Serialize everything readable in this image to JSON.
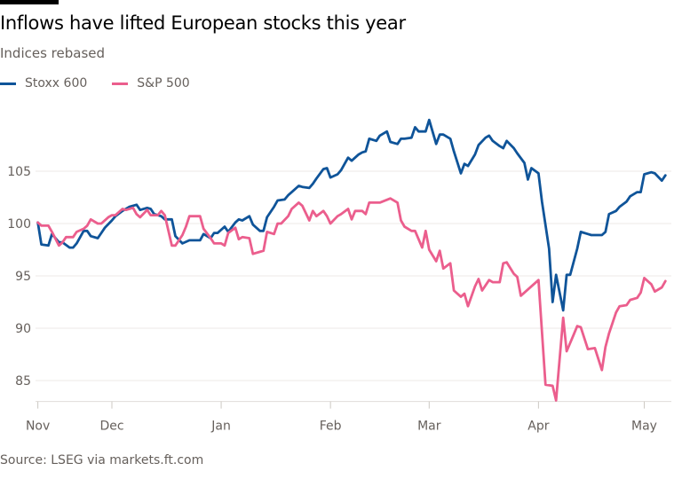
{
  "title": "Inflows have lifted European stocks this year",
  "subtitle": "Indices rebased",
  "source": "Source: LSEG via markets.ft.com",
  "chart_data": {
    "type": "line",
    "title": "Inflows have lifted European stocks this year",
    "subtitle": "Indices rebased",
    "xlabel": "",
    "ylabel": "",
    "ylim": [
      83,
      110
    ],
    "xlim": [
      "2024-11-10",
      "2025-05-08"
    ],
    "grid": true,
    "legend": "top-left",
    "y_ticks": [
      85,
      90,
      95,
      100,
      105
    ],
    "x_ticks": [
      {
        "label": "Nov",
        "date": "2024-11-10"
      },
      {
        "label": "Dec",
        "date": "2024-12-01"
      },
      {
        "label": "Jan",
        "date": "2025-01-01"
      },
      {
        "label": "Feb",
        "date": "2025-02-01"
      },
      {
        "label": "Mar",
        "date": "2025-03-01"
      },
      {
        "label": "Apr",
        "date": "2025-04-01"
      },
      {
        "label": "May",
        "date": "2025-05-01"
      }
    ],
    "series": [
      {
        "name": "Stoxx 600",
        "color": "#0f5499",
        "points": [
          [
            "2024-11-10",
            100.1
          ],
          [
            "2024-11-11",
            98.0
          ],
          [
            "2024-11-13",
            97.9
          ],
          [
            "2024-11-14",
            99.0
          ],
          [
            "2024-11-16",
            98.2
          ],
          [
            "2024-11-17",
            98.2
          ],
          [
            "2024-11-19",
            97.7
          ],
          [
            "2024-11-20",
            97.7
          ],
          [
            "2024-11-21",
            98.1
          ],
          [
            "2024-11-23",
            99.3
          ],
          [
            "2024-11-24",
            99.3
          ],
          [
            "2024-11-25",
            98.8
          ],
          [
            "2024-11-27",
            98.6
          ],
          [
            "2024-11-28",
            99.1
          ],
          [
            "2024-11-29",
            99.6
          ],
          [
            "2024-12-01",
            100.3
          ],
          [
            "2024-12-02",
            100.7
          ],
          [
            "2024-12-04",
            101.2
          ],
          [
            "2024-12-06",
            101.6
          ],
          [
            "2024-12-08",
            101.8
          ],
          [
            "2024-12-09",
            101.3
          ],
          [
            "2024-12-11",
            101.5
          ],
          [
            "2024-12-12",
            101.4
          ],
          [
            "2024-12-13",
            100.9
          ],
          [
            "2024-12-15",
            100.7
          ],
          [
            "2024-12-16",
            100.4
          ],
          [
            "2024-12-18",
            100.4
          ],
          [
            "2024-12-19",
            98.8
          ],
          [
            "2024-12-21",
            98.1
          ],
          [
            "2024-12-23",
            98.4
          ],
          [
            "2024-12-26",
            98.4
          ],
          [
            "2024-12-27",
            99.0
          ],
          [
            "2024-12-29",
            98.6
          ],
          [
            "2024-12-30",
            99.1
          ],
          [
            "2024-12-31",
            99.1
          ],
          [
            "2025-01-02",
            99.7
          ],
          [
            "2025-01-03",
            99.2
          ],
          [
            "2025-01-05",
            100.1
          ],
          [
            "2025-01-06",
            100.4
          ],
          [
            "2025-01-07",
            100.3
          ],
          [
            "2025-01-09",
            100.7
          ],
          [
            "2025-01-10",
            99.9
          ],
          [
            "2025-01-12",
            99.3
          ],
          [
            "2025-01-13",
            99.3
          ],
          [
            "2025-01-14",
            100.6
          ],
          [
            "2025-01-16",
            101.6
          ],
          [
            "2025-01-17",
            102.2
          ],
          [
            "2025-01-19",
            102.3
          ],
          [
            "2025-01-20",
            102.7
          ],
          [
            "2025-01-21",
            103.0
          ],
          [
            "2025-01-23",
            103.6
          ],
          [
            "2025-01-24",
            103.5
          ],
          [
            "2025-01-26",
            103.4
          ],
          [
            "2025-01-27",
            103.8
          ],
          [
            "2025-01-28",
            104.3
          ],
          [
            "2025-01-30",
            105.2
          ],
          [
            "2025-01-31",
            105.3
          ],
          [
            "2025-02-01",
            104.4
          ],
          [
            "2025-02-03",
            104.7
          ],
          [
            "2025-02-04",
            105.1
          ],
          [
            "2025-02-06",
            106.3
          ],
          [
            "2025-02-07",
            106.0
          ],
          [
            "2025-02-09",
            106.6
          ],
          [
            "2025-02-10",
            106.8
          ],
          [
            "2025-02-11",
            106.9
          ],
          [
            "2025-02-12",
            108.1
          ],
          [
            "2025-02-14",
            107.9
          ],
          [
            "2025-02-15",
            108.4
          ],
          [
            "2025-02-17",
            108.8
          ],
          [
            "2025-02-18",
            107.8
          ],
          [
            "2025-02-20",
            107.6
          ],
          [
            "2025-02-21",
            108.1
          ],
          [
            "2025-02-22",
            108.1
          ],
          [
            "2025-02-24",
            108.2
          ],
          [
            "2025-02-25",
            109.2
          ],
          [
            "2025-02-26",
            108.8
          ],
          [
            "2025-02-28",
            108.8
          ],
          [
            "2025-03-01",
            109.9
          ],
          [
            "2025-03-03",
            107.6
          ],
          [
            "2025-03-04",
            108.5
          ],
          [
            "2025-03-05",
            108.5
          ],
          [
            "2025-03-07",
            108.1
          ],
          [
            "2025-03-08",
            106.9
          ],
          [
            "2025-03-10",
            104.8
          ],
          [
            "2025-03-11",
            105.7
          ],
          [
            "2025-03-12",
            105.5
          ],
          [
            "2025-03-14",
            106.6
          ],
          [
            "2025-03-15",
            107.5
          ],
          [
            "2025-03-17",
            108.2
          ],
          [
            "2025-03-18",
            108.4
          ],
          [
            "2025-03-19",
            107.9
          ],
          [
            "2025-03-21",
            107.4
          ],
          [
            "2025-03-22",
            107.2
          ],
          [
            "2025-03-23",
            107.9
          ],
          [
            "2025-03-25",
            107.2
          ],
          [
            "2025-03-26",
            106.7
          ],
          [
            "2025-03-28",
            105.8
          ],
          [
            "2025-03-29",
            104.2
          ],
          [
            "2025-03-30",
            105.3
          ],
          [
            "2025-04-01",
            104.8
          ],
          [
            "2025-04-02",
            102.1
          ],
          [
            "2025-04-04",
            97.6
          ],
          [
            "2025-04-05",
            92.5
          ],
          [
            "2025-04-06",
            95.1
          ],
          [
            "2025-04-08",
            91.7
          ],
          [
            "2025-04-09",
            95.1
          ],
          [
            "2025-04-10",
            95.1
          ],
          [
            "2025-04-12",
            97.6
          ],
          [
            "2025-04-13",
            99.2
          ],
          [
            "2025-04-15",
            99.0
          ],
          [
            "2025-04-16",
            98.9
          ],
          [
            "2025-04-19",
            98.9
          ],
          [
            "2025-04-20",
            99.2
          ],
          [
            "2025-04-21",
            100.9
          ],
          [
            "2025-04-23",
            101.2
          ],
          [
            "2025-04-24",
            101.6
          ],
          [
            "2025-04-26",
            102.1
          ],
          [
            "2025-04-27",
            102.6
          ],
          [
            "2025-04-29",
            103.0
          ],
          [
            "2025-04-30",
            103.0
          ],
          [
            "2025-05-01",
            104.7
          ],
          [
            "2025-05-03",
            104.9
          ],
          [
            "2025-05-04",
            104.8
          ],
          [
            "2025-05-06",
            104.1
          ],
          [
            "2025-05-07",
            104.6
          ]
        ]
      },
      {
        "name": "S&P 500",
        "color": "#eb5e8d",
        "points": [
          [
            "2024-11-10",
            100.1
          ],
          [
            "2024-11-11",
            99.8
          ],
          [
            "2024-11-13",
            99.8
          ],
          [
            "2024-11-14",
            99.2
          ],
          [
            "2024-11-16",
            97.9
          ],
          [
            "2024-11-17",
            98.2
          ],
          [
            "2024-11-18",
            98.7
          ],
          [
            "2024-11-20",
            98.7
          ],
          [
            "2024-11-21",
            99.2
          ],
          [
            "2024-11-23",
            99.5
          ],
          [
            "2024-11-24",
            99.8
          ],
          [
            "2024-11-25",
            100.4
          ],
          [
            "2024-11-27",
            100.0
          ],
          [
            "2024-11-28",
            100.0
          ],
          [
            "2024-11-30",
            100.6
          ],
          [
            "2024-12-01",
            100.8
          ],
          [
            "2024-12-02",
            100.8
          ],
          [
            "2024-12-04",
            101.4
          ],
          [
            "2024-12-05",
            101.3
          ],
          [
            "2024-12-07",
            101.5
          ],
          [
            "2024-12-08",
            100.9
          ],
          [
            "2024-12-09",
            100.6
          ],
          [
            "2024-12-11",
            101.3
          ],
          [
            "2024-12-12",
            100.8
          ],
          [
            "2024-12-14",
            100.8
          ],
          [
            "2024-12-15",
            101.2
          ],
          [
            "2024-12-16",
            100.8
          ],
          [
            "2024-12-18",
            97.9
          ],
          [
            "2024-12-19",
            97.9
          ],
          [
            "2024-12-21",
            98.9
          ],
          [
            "2024-12-22",
            99.7
          ],
          [
            "2024-12-23",
            100.7
          ],
          [
            "2024-12-26",
            100.7
          ],
          [
            "2024-12-27",
            99.5
          ],
          [
            "2024-12-29",
            98.6
          ],
          [
            "2024-12-30",
            98.1
          ],
          [
            "2025-01-01",
            98.1
          ],
          [
            "2025-01-02",
            97.9
          ],
          [
            "2025-01-03",
            99.1
          ],
          [
            "2025-01-05",
            99.6
          ],
          [
            "2025-01-06",
            98.5
          ],
          [
            "2025-01-07",
            98.7
          ],
          [
            "2025-01-09",
            98.6
          ],
          [
            "2025-01-10",
            97.1
          ],
          [
            "2025-01-12",
            97.3
          ],
          [
            "2025-01-13",
            97.4
          ],
          [
            "2025-01-14",
            99.2
          ],
          [
            "2025-01-16",
            99.0
          ],
          [
            "2025-01-17",
            100.0
          ],
          [
            "2025-01-18",
            100.0
          ],
          [
            "2025-01-20",
            100.7
          ],
          [
            "2025-01-21",
            101.4
          ],
          [
            "2025-01-23",
            102.0
          ],
          [
            "2025-01-24",
            101.7
          ],
          [
            "2025-01-26",
            100.3
          ],
          [
            "2025-01-27",
            101.2
          ],
          [
            "2025-01-28",
            100.7
          ],
          [
            "2025-01-30",
            101.2
          ],
          [
            "2025-01-31",
            100.7
          ],
          [
            "2025-02-01",
            100.0
          ],
          [
            "2025-02-03",
            100.7
          ],
          [
            "2025-02-04",
            100.9
          ],
          [
            "2025-02-06",
            101.4
          ],
          [
            "2025-02-07",
            100.4
          ],
          [
            "2025-02-08",
            101.2
          ],
          [
            "2025-02-10",
            101.2
          ],
          [
            "2025-02-11",
            100.9
          ],
          [
            "2025-02-12",
            102.0
          ],
          [
            "2025-02-15",
            102.0
          ],
          [
            "2025-02-18",
            102.4
          ],
          [
            "2025-02-20",
            102.0
          ],
          [
            "2025-02-21",
            100.3
          ],
          [
            "2025-02-22",
            99.7
          ],
          [
            "2025-02-24",
            99.3
          ],
          [
            "2025-02-25",
            99.3
          ],
          [
            "2025-02-27",
            97.7
          ],
          [
            "2025-02-28",
            99.3
          ],
          [
            "2025-03-01",
            97.5
          ],
          [
            "2025-03-03",
            96.4
          ],
          [
            "2025-03-04",
            97.4
          ],
          [
            "2025-03-05",
            95.7
          ],
          [
            "2025-03-07",
            96.2
          ],
          [
            "2025-03-08",
            93.6
          ],
          [
            "2025-03-10",
            93.0
          ],
          [
            "2025-03-11",
            93.3
          ],
          [
            "2025-03-12",
            92.1
          ],
          [
            "2025-03-14",
            94.0
          ],
          [
            "2025-03-15",
            94.7
          ],
          [
            "2025-03-16",
            93.6
          ],
          [
            "2025-03-18",
            94.6
          ],
          [
            "2025-03-19",
            94.4
          ],
          [
            "2025-03-21",
            94.4
          ],
          [
            "2025-03-22",
            96.2
          ],
          [
            "2025-03-23",
            96.3
          ],
          [
            "2025-03-25",
            95.2
          ],
          [
            "2025-03-26",
            94.9
          ],
          [
            "2025-03-27",
            93.1
          ],
          [
            "2025-03-29",
            93.7
          ],
          [
            "2025-03-30",
            94.0
          ],
          [
            "2025-04-01",
            94.6
          ],
          [
            "2025-04-03",
            84.6
          ],
          [
            "2025-04-05",
            84.5
          ],
          [
            "2025-04-06",
            83.1
          ],
          [
            "2025-04-08",
            91.0
          ],
          [
            "2025-04-09",
            87.8
          ],
          [
            "2025-04-11",
            89.4
          ],
          [
            "2025-04-12",
            90.2
          ],
          [
            "2025-04-13",
            90.1
          ],
          [
            "2025-04-15",
            88.0
          ],
          [
            "2025-04-17",
            88.1
          ],
          [
            "2025-04-19",
            86.0
          ],
          [
            "2025-04-20",
            88.2
          ],
          [
            "2025-04-21",
            89.5
          ],
          [
            "2025-04-23",
            91.5
          ],
          [
            "2025-04-24",
            92.1
          ],
          [
            "2025-04-26",
            92.2
          ],
          [
            "2025-04-27",
            92.7
          ],
          [
            "2025-04-29",
            92.9
          ],
          [
            "2025-04-30",
            93.4
          ],
          [
            "2025-05-01",
            94.8
          ],
          [
            "2025-05-03",
            94.2
          ],
          [
            "2025-05-04",
            93.5
          ],
          [
            "2025-05-06",
            93.9
          ],
          [
            "2025-05-07",
            94.5
          ]
        ]
      }
    ]
  }
}
